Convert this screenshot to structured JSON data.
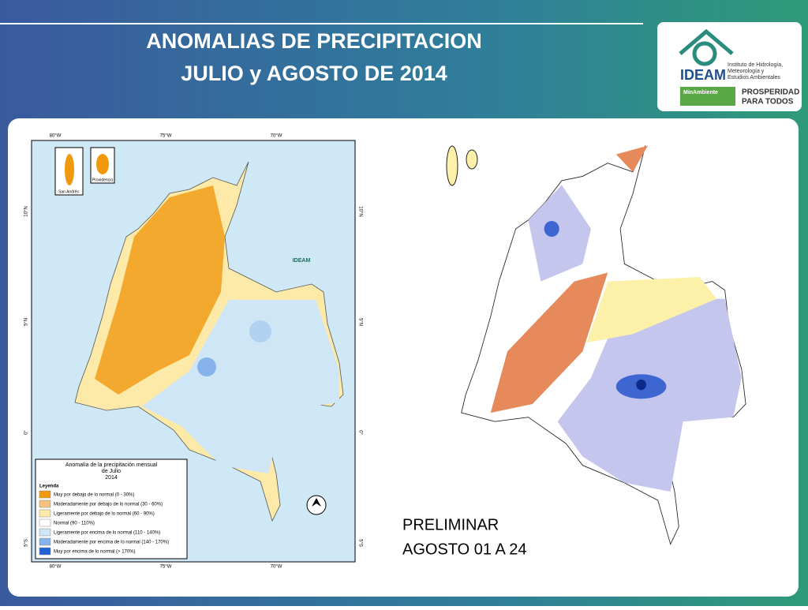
{
  "header": {
    "title_lines": [
      "ANOMALIAS DE PRECIPITACION",
      "JULIO y AGOSTO DE 2014"
    ]
  },
  "logo": {
    "name": "IDEAM",
    "subtitle_lines": [
      "Instituto de Hidrología,",
      "Meteorología y",
      "Estudios Ambientales"
    ],
    "ministry": "MinAmbiente",
    "slogan_lines": [
      "PROSPERIDAD",
      "PARA TODOS"
    ]
  },
  "left_map": {
    "top_labels": [
      "80°W",
      "75°W",
      "70°W"
    ],
    "bottom_labels": [
      "80°W",
      "75°W",
      "70°W"
    ],
    "left_labels": [
      "10°N",
      "5°N",
      "0°",
      "5°S"
    ],
    "right_labels": [
      "10°N",
      "5°N",
      "0°",
      "5°S"
    ],
    "insets": [
      "San Andrés",
      "Providencia"
    ],
    "logo": "IDEAM",
    "legend": {
      "title_lines": [
        "Anomalía de la precipitación mensual",
        "de Julio",
        "2014"
      ],
      "heading": "Leyenda",
      "items": [
        {
          "label": "Muy por debajo de lo normal (0 - 30%)",
          "color": "#f0990f"
        },
        {
          "label": "Moderadamente por debajo de lo normal (30 - 60%)",
          "color": "#f5c27c"
        },
        {
          "label": "Ligeramente por debajo de lo normal (60 - 90%)",
          "color": "#fdeaa8"
        },
        {
          "label": "Normal (90 - 110%)",
          "color": "#ffffff"
        },
        {
          "label": "Ligeramente por encima de lo normal (110 - 140%)",
          "color": "#cfe6f7"
        },
        {
          "label": "Moderadamente por encima de lo normal (140 - 170%)",
          "color": "#86b3ea"
        },
        {
          "label": "Muy por encima de lo normal (> 170%)",
          "color": "#1f63d6"
        }
      ]
    }
  },
  "right_map": {
    "caption_lines": [
      "PRELIMINAR",
      "AGOSTO 01 A 24"
    ]
  }
}
